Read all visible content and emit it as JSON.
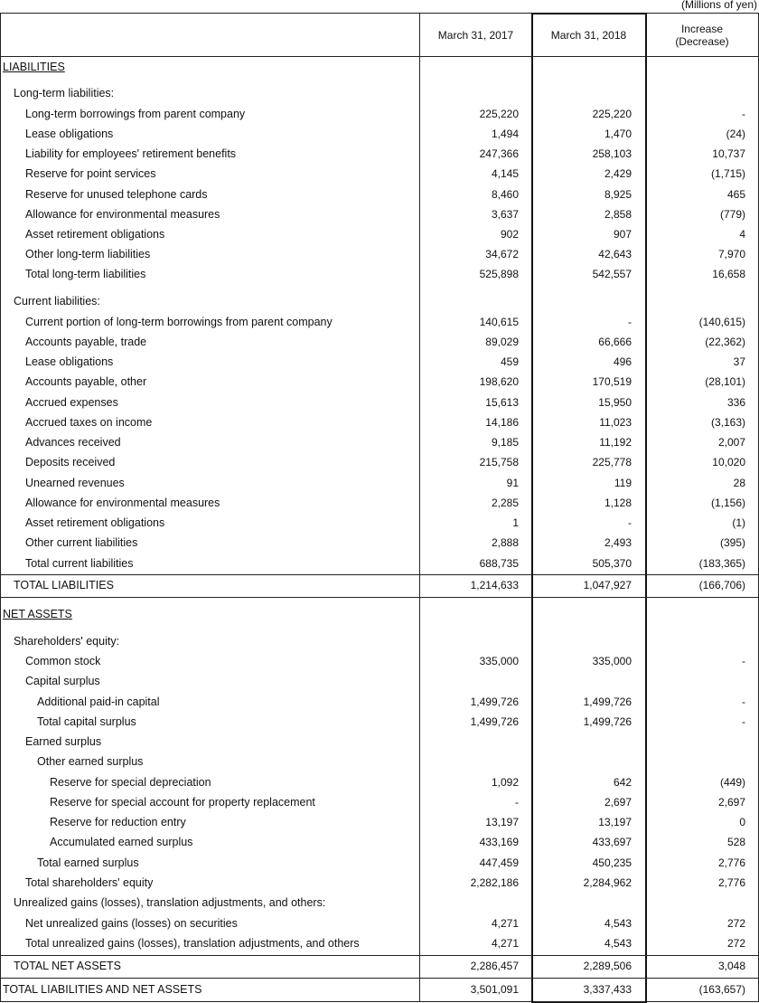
{
  "header": {
    "unit": "(Millions of yen)",
    "columns": [
      "March 31, 2017",
      "March 31, 2018",
      "Increase\n(Decrease)"
    ]
  },
  "rows": [
    [
      "LIABILITIES"
    ],
    [
      "Long-term liabilities:"
    ],
    [
      "Long-term borrowings from parent company",
      "225,220",
      "225,220",
      "-"
    ],
    [
      "Lease obligations",
      "1,494",
      "1,470",
      "(24)"
    ],
    [
      "Liability for employees' retirement benefits",
      "247,366",
      "258,103",
      "10,737"
    ],
    [
      "Reserve for point services",
      "4,145",
      "2,429",
      "(1,715)"
    ],
    [
      "Reserve for unused telephone cards",
      "8,460",
      "8,925",
      "465"
    ],
    [
      "Allowance for environmental measures",
      "3,637",
      "2,858",
      "(779)"
    ],
    [
      "Asset retirement obligations",
      "902",
      "907",
      "4"
    ],
    [
      "Other long-term liabilities",
      "34,672",
      "42,643",
      "7,970"
    ],
    [
      "Total long-term liabilities",
      "525,898",
      "542,557",
      "16,658"
    ],
    [
      "Current liabilities:"
    ],
    [
      "Current portion of long-term borrowings from parent company",
      "140,615",
      "-",
      "(140,615)"
    ],
    [
      "Accounts payable, trade",
      "89,029",
      "66,666",
      "(22,362)"
    ],
    [
      "Lease obligations",
      "459",
      "496",
      "37"
    ],
    [
      "Accounts payable, other",
      "198,620",
      "170,519",
      "(28,101)"
    ],
    [
      "Accrued expenses",
      "15,613",
      "15,950",
      "336"
    ],
    [
      "Accrued taxes on income",
      "14,186",
      "11,023",
      "(3,163)"
    ],
    [
      "Advances received",
      "9,185",
      "11,192",
      "2,007"
    ],
    [
      "Deposits received",
      "215,758",
      "225,778",
      "10,020"
    ],
    [
      "Unearned revenues",
      "91",
      "119",
      "28"
    ],
    [
      "Allowance for environmental measures",
      "2,285",
      "1,128",
      "(1,156)"
    ],
    [
      "Asset retirement obligations",
      "1",
      "-",
      "(1)"
    ],
    [
      "Other current liabilities",
      "2,888",
      "2,493",
      "(395)"
    ],
    [
      "Total current liabilities",
      "688,735",
      "505,370",
      "(183,365)"
    ],
    [
      "TOTAL LIABILITIES",
      "1,214,633",
      "1,047,927",
      "(166,706)"
    ],
    [
      "NET ASSETS"
    ],
    [
      "Shareholders' equity:"
    ],
    [
      "Common stock",
      "335,000",
      "335,000",
      "-"
    ],
    [
      "Capital surplus"
    ],
    [
      "Additional paid-in capital",
      "1,499,726",
      "1,499,726",
      "-"
    ],
    [
      "Total capital surplus",
      "1,499,726",
      "1,499,726",
      "-"
    ],
    [
      "Earned surplus"
    ],
    [
      "Other earned surplus"
    ],
    [
      "Reserve for special depreciation",
      "1,092",
      "642",
      "(449)"
    ],
    [
      "Reserve for special account for property replacement",
      "-",
      "2,697",
      "2,697"
    ],
    [
      "Reserve for reduction entry",
      "13,197",
      "13,197",
      "0"
    ],
    [
      "Accumulated earned surplus",
      "433,169",
      "433,697",
      "528"
    ],
    [
      "Total earned surplus",
      "447,459",
      "450,235",
      "2,776"
    ],
    [
      "Total shareholders' equity",
      "2,282,186",
      "2,284,962",
      "2,776"
    ],
    [
      "Unrealized gains (losses), translation adjustments, and others:"
    ],
    [
      "Net unrealized gains (losses) on securities",
      "4,271",
      "4,543",
      "272"
    ],
    [
      "Total unrealized gains (losses), translation adjustments, and others",
      "4,271",
      "4,543",
      "272"
    ],
    [
      "TOTAL NET ASSETS",
      "2,286,457",
      "2,289,506",
      "3,048"
    ],
    [
      "TOTAL LIABILITIES AND NET ASSETS",
      "3,501,091",
      "3,337,433",
      "(163,657)"
    ]
  ]
}
